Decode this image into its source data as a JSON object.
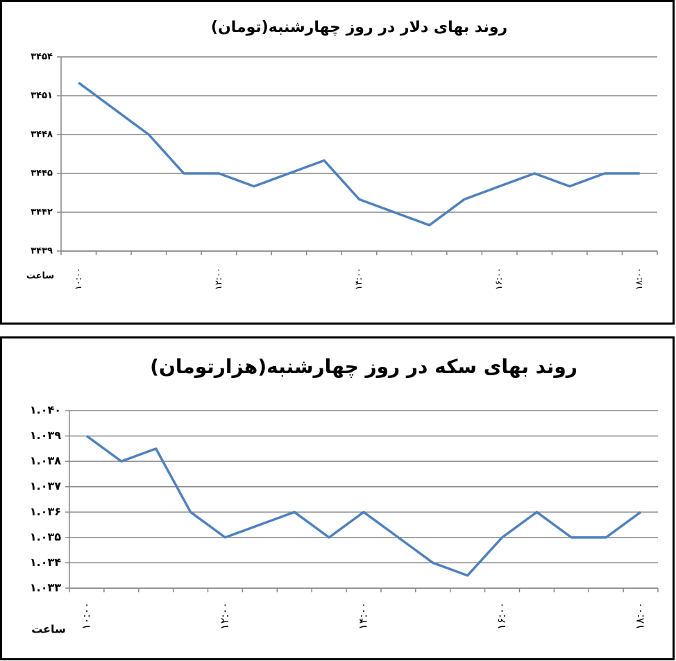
{
  "chart_data": [
    {
      "type": "line",
      "title": "روند بهای دلار در روز چهارشنبه(تومان)",
      "xlabel": "ساعت",
      "categories": [
        "۱۰:۰۰",
        null,
        null,
        null,
        "۱۲:۰۰",
        null,
        null,
        null,
        "۱۴:۰۰",
        null,
        null,
        null,
        "۱۶:۰۰",
        null,
        null,
        null,
        "۱۸:۰۰"
      ],
      "series": [
        {
          "name": "دلار",
          "color": "#4f81bd",
          "values": [
            3452,
            3450,
            3448,
            3445,
            3445,
            3444,
            3445,
            3446,
            3443,
            3442,
            3441,
            3443,
            3444,
            3445,
            3444,
            3445,
            3445
          ]
        }
      ],
      "ylim": [
        3439,
        3454
      ],
      "yticks": [
        {
          "value": 3439,
          "label": "۳۴۳۹"
        },
        {
          "value": 3442,
          "label": "۳۴۴۲"
        },
        {
          "value": 3445,
          "label": "۳۴۴۵"
        },
        {
          "value": 3448,
          "label": "۳۴۴۸"
        },
        {
          "value": 3451,
          "label": "۳۴۵۱"
        },
        {
          "value": 3454,
          "label": "۳۴۵۴"
        }
      ],
      "grid": true
    },
    {
      "type": "line",
      "title": "روند بهای سکه در روز چهارشنبه(هزارتومان)",
      "xlabel": "ساعت",
      "categories": [
        "۱۰:۰۰",
        null,
        null,
        null,
        "۱۲:۰۰",
        null,
        null,
        null,
        "۱۴:۰۰",
        null,
        null,
        null,
        "۱۶:۰۰",
        null,
        null,
        null,
        "۱۸:۰۰"
      ],
      "series": [
        {
          "name": "سکه",
          "color": "#4f81bd",
          "values": [
            1039,
            1038,
            1038.5,
            1036,
            1035,
            1035.5,
            1036,
            1035,
            1036,
            1035,
            1034,
            1033.5,
            1035,
            1036,
            1035,
            1035,
            1036
          ]
        }
      ],
      "ylim": [
        1033,
        1040
      ],
      "yticks": [
        {
          "value": 1033,
          "label": "۱.۰۳۳"
        },
        {
          "value": 1034,
          "label": "۱.۰۳۴"
        },
        {
          "value": 1035,
          "label": "۱.۰۳۵"
        },
        {
          "value": 1036,
          "label": "۱.۰۳۶"
        },
        {
          "value": 1037,
          "label": "۱.۰۳۷"
        },
        {
          "value": 1038,
          "label": "۱.۰۳۸"
        },
        {
          "value": 1039,
          "label": "۱.۰۳۹"
        },
        {
          "value": 1040,
          "label": "۱.۰۴۰"
        }
      ],
      "grid": true
    }
  ]
}
